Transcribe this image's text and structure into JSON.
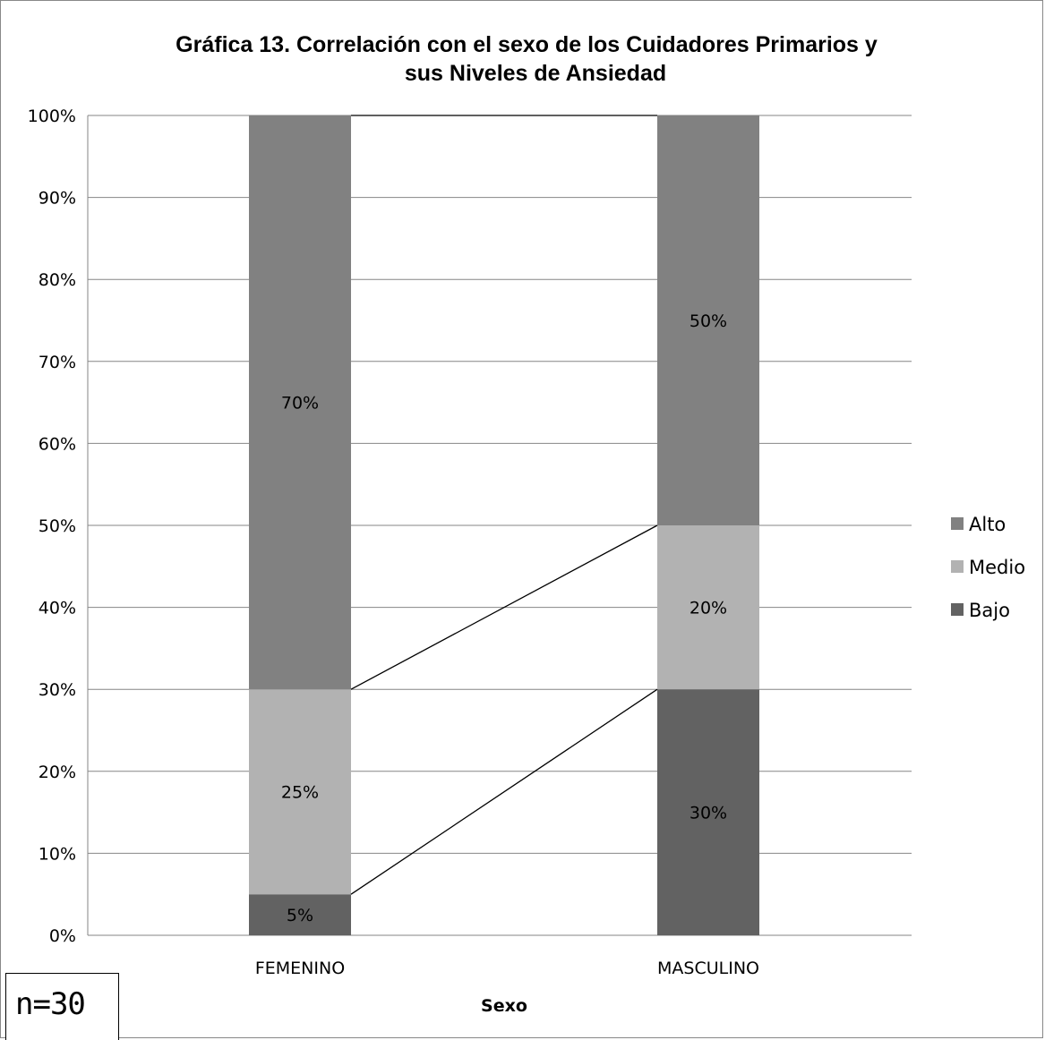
{
  "chart_data": {
    "type": "bar",
    "stacked": true,
    "title_lines": [
      "Gráfica 13. Correlación con el sexo de los Cuidadores Primarios y",
      "sus Niveles de Ansiedad"
    ],
    "xlabel": "Sexo",
    "ylabel": "",
    "ylim": [
      0,
      100
    ],
    "y_ticks": [
      "0%",
      "10%",
      "20%",
      "30%",
      "40%",
      "50%",
      "60%",
      "70%",
      "80%",
      "90%",
      "100%"
    ],
    "categories": [
      "FEMENINO",
      "MASCULINO"
    ],
    "series": [
      {
        "name": "Bajo",
        "values": [
          5,
          30
        ],
        "labels": [
          "5%",
          "30%"
        ],
        "color": "#626262"
      },
      {
        "name": "Medio",
        "values": [
          25,
          20
        ],
        "labels": [
          "25%",
          "20%"
        ],
        "color": "#b2b2b2"
      },
      {
        "name": "Alto",
        "values": [
          70,
          50
        ],
        "labels": [
          "70%",
          "50%"
        ],
        "color": "#818181"
      }
    ],
    "legend_order": [
      "Alto",
      "Medio",
      "Bajo"
    ],
    "legend_position": "right",
    "grid": true,
    "series_lines": true
  },
  "note": "n=30"
}
